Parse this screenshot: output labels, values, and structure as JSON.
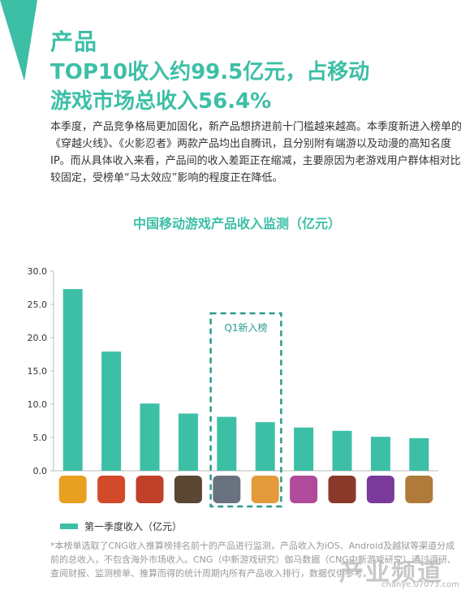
{
  "header": {
    "title_line1": "产品",
    "title_line2": "TOP10收入约99.5亿元，占移动",
    "title_line3": "游戏市场总收入56.4%"
  },
  "body_text": "本季度，产品竞争格局更加固化，新产品想挤进前十门槛越来越高。本季度新进入榜单的《穿越火线》、《火影忍者》两款产品均出自腾讯，且分别附有端游以及动漫的高知名度IP。而从具体收入来看，产品间的收入差距正在缩减，主要原因为老游戏用户群体相对比较固定，受榜单“马太效应”影响的程度正在降低。",
  "chart_data": {
    "type": "bar",
    "title": "中国移动游戏产品收入监测（亿元）",
    "categories": [
      "",
      "",
      "",
      "",
      "",
      "",
      "",
      "",
      "",
      ""
    ],
    "series": [
      {
        "name": "第一季度收入（亿元）",
        "values": [
          27.3,
          17.9,
          10.1,
          8.6,
          8.1,
          7.3,
          6.5,
          6.0,
          5.1,
          4.9
        ]
      }
    ],
    "ylim": [
      0,
      30
    ],
    "yticks": [
      "0.0",
      "5.0",
      "10.0",
      "15.0",
      "20.0",
      "25.0",
      "30.0"
    ],
    "grid": false,
    "legend_position": "bottom-left",
    "annotation": {
      "label": "Q1新入榜",
      "category_indices": [
        4,
        5
      ]
    },
    "bar_color": "#3dbfa6",
    "icon_colors": [
      "#e8a020",
      "#d24a2a",
      "#c0402a",
      "#5a4632",
      "#6a7280",
      "#e39a3a",
      "#b04a9a",
      "#8a3a2a",
      "#7a3a9a",
      "#b07a3a"
    ]
  },
  "footnote": "*本榜单选取了CNG收入推算榜排名前十的产品进行监测，产品收入为iOS、Android及越狱等渠道分成前的总收入，不包含海外市场收入。CNG（中新游戏研究）伽马数据（CNG中新游戏研究）通过调研、查阅财报、监测榜单、推算而得的统计周期内所有产品收入排行，数据仅供参考。",
  "watermark": {
    "text": "产业频道",
    "url": "chanye.07073.com"
  },
  "colors": {
    "accent": "#3dbfa6",
    "text": "#333333",
    "muted": "#999999"
  }
}
